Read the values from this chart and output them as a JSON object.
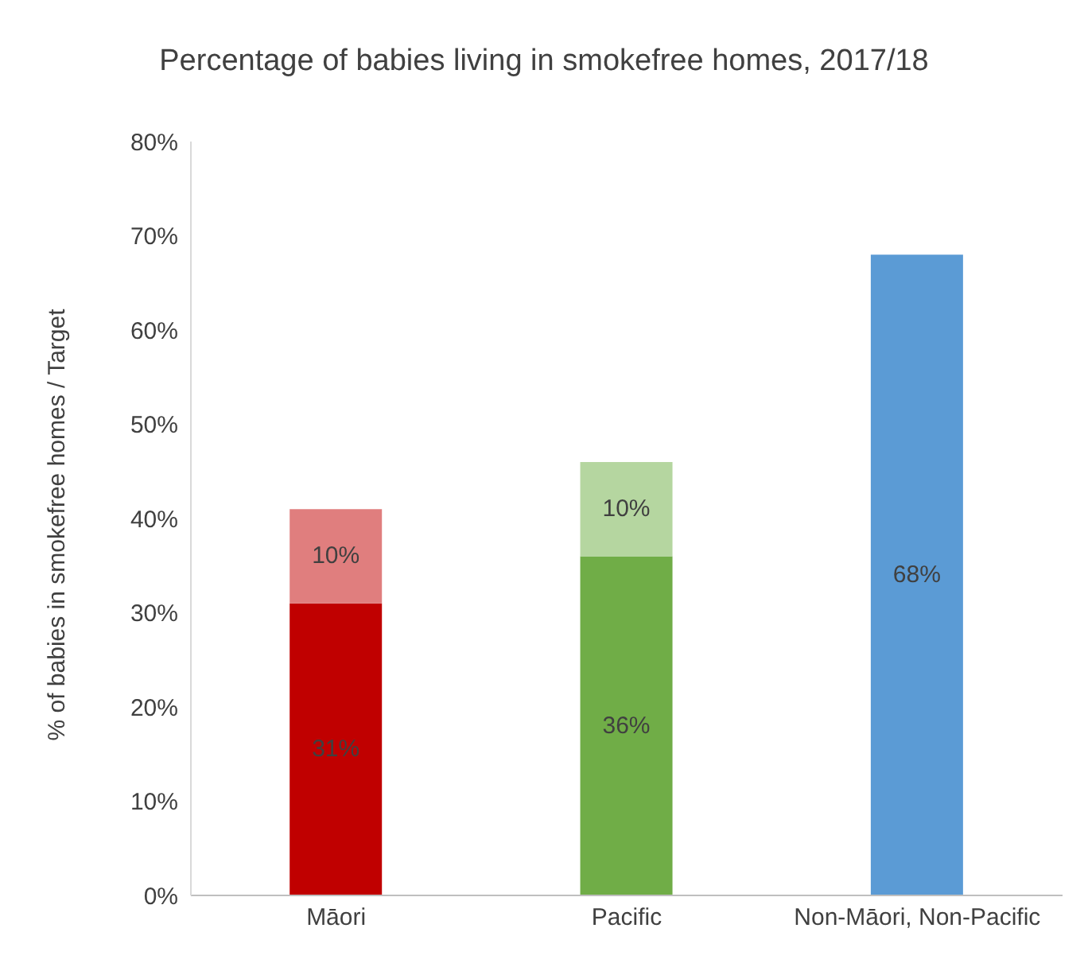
{
  "chart_data": {
    "type": "bar",
    "title": "Percentage of babies living in smokefree homes, 2017/18",
    "ylabel": "% of babies in smokefree homes / Target",
    "categories": [
      "Māori",
      "Pacific",
      "Non-Māori, Non-Pacific"
    ],
    "stacked": true,
    "series": [
      {
        "colors": [
          "#c00000",
          "#70ad47",
          "#5b9bd5"
        ],
        "values": [
          31,
          36,
          68
        ],
        "value_labels": [
          "31%",
          "36%",
          "68%"
        ]
      },
      {
        "colors": [
          "#e07e7e",
          "#b5d6a0",
          "#b5d6a0"
        ],
        "values": [
          10,
          10,
          null
        ],
        "value_labels": [
          "10%",
          "10%",
          null
        ]
      }
    ],
    "ylim": [
      0,
      80
    ],
    "yticks": [
      {
        "value": 0,
        "label": "0%"
      },
      {
        "value": 10,
        "label": "10%"
      },
      {
        "value": 20,
        "label": "20%"
      },
      {
        "value": 30,
        "label": "30%"
      },
      {
        "value": 40,
        "label": "40%"
      },
      {
        "value": 50,
        "label": "50%"
      },
      {
        "value": 60,
        "label": "60%"
      },
      {
        "value": 70,
        "label": "70%"
      },
      {
        "value": 80,
        "label": "80%"
      }
    ],
    "grid": false,
    "legend": false
  }
}
